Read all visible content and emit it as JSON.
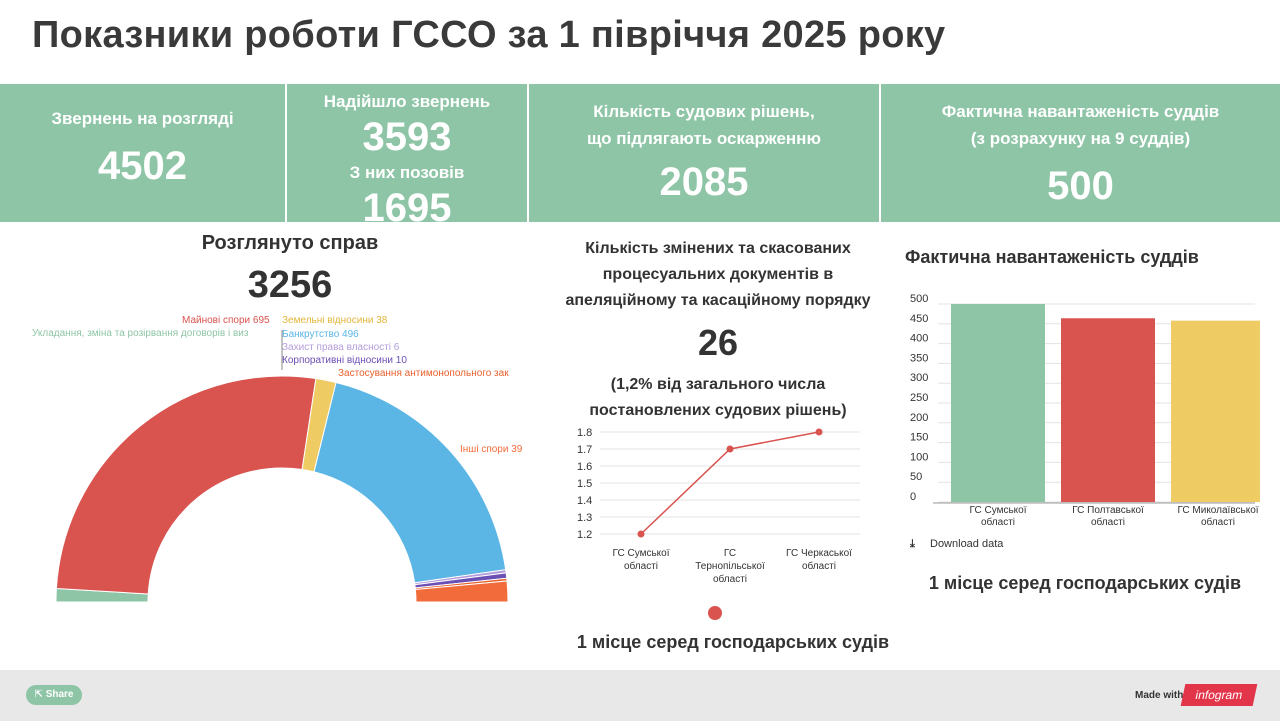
{
  "title": "Показники роботи ГССО за 1 півріччя 2025 року",
  "stats": {
    "s1_label": "Звернень на розгляді",
    "s1_value": "4502",
    "s2_label1": "Надійшло звернень",
    "s2_value1": "3593",
    "s2_label2": "З них позовів",
    "s2_value2": "1695",
    "s3_label1": "Кількість судових рішень,",
    "s3_label2": "що підлягають оскарженню",
    "s3_value": "2085",
    "s4_label1": "Фактична навантаженість суддів",
    "s4_label2": "(з розрахунку на 9 суддів)",
    "s4_value": "500"
  },
  "left": {
    "title": "Розглянуто справ",
    "total": "3256"
  },
  "middle": {
    "title_lines": [
      "Кількість змінених та скасованих",
      "процесуальних документів в",
      "апеляційному та касаційному порядку"
    ],
    "number": "26",
    "sub_lines": [
      "(1,2% від загального числа",
      "постановлених судових рішень)"
    ],
    "rank": "1 місце серед господарських судів"
  },
  "right": {
    "title": "Фактична навантаженість суддів",
    "download": "Download data",
    "rank": "1 місце серед господарських судів"
  },
  "footer": {
    "share": "Share",
    "made_with": "Made with",
    "brand": "infogram"
  },
  "colors": {
    "green": "#8ec5a6",
    "red": "#d9534f",
    "yellow": "#eecb63",
    "blue": "#5bb5e5",
    "orange": "#f26b3a"
  },
  "chart_data": [
    {
      "type": "pie",
      "variant": "semi-donut",
      "slices": [
        {
          "label": "Укладання, зміна та розірвання договорів і виз",
          "value": 25,
          "color": "#8ec5a6"
        },
        {
          "label": "Майнові спори 695",
          "value": 695,
          "color": "#d9534f"
        },
        {
          "label": "Земельні відносини 38",
          "value": 38,
          "color": "#eecb63"
        },
        {
          "label": "Банкрутство 496",
          "value": 496,
          "color": "#5bb5e5"
        },
        {
          "label": "Захист права власності 6",
          "value": 6,
          "color": "#b39ddb"
        },
        {
          "label": "Корпоративні відносини 10",
          "value": 10,
          "color": "#6a4fb5"
        },
        {
          "label": "Застосування антимонопольного зак",
          "value": 5,
          "color": "#e8602c"
        },
        {
          "label": "Інші спори 39",
          "value": 39,
          "color": "#f26b3a"
        }
      ]
    },
    {
      "type": "line",
      "categories": [
        "ГС Сумської|області",
        "ГС|Тернопільської|області",
        "ГС Черкаської|області"
      ],
      "values": [
        1.2,
        1.7,
        1.8
      ],
      "ylim": [
        1.2,
        1.8
      ],
      "yticks": [
        "1.2",
        "1.3",
        "1.4",
        "1.5",
        "1.6",
        "1.7",
        "1.8"
      ],
      "color": "#d9534f"
    },
    {
      "type": "bar",
      "categories": [
        "ГС Сумської|області",
        "ГС Полтавської|області",
        "ГС Миколаївської|області"
      ],
      "values": [
        500,
        464,
        458
      ],
      "colors": [
        "#8ec5a6",
        "#d9534f",
        "#eecb63"
      ],
      "ylim": [
        0,
        500
      ],
      "yticks": [
        "0",
        "50",
        "100",
        "150",
        "200",
        "250",
        "300",
        "350",
        "400",
        "450",
        "500"
      ]
    }
  ]
}
